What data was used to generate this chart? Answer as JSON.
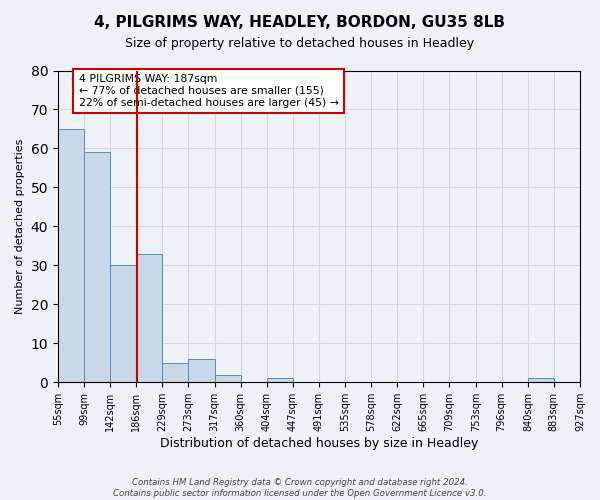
{
  "title": "4, PILGRIMS WAY, HEADLEY, BORDON, GU35 8LB",
  "subtitle": "Size of property relative to detached houses in Headley",
  "xlabel": "Distribution of detached houses by size in Headley",
  "ylabel": "Number of detached properties",
  "bar_edges": [
    55,
    99,
    142,
    186,
    229,
    273,
    317,
    360,
    404,
    447,
    491,
    535,
    578,
    622,
    665,
    709,
    753,
    796,
    840,
    883,
    927
  ],
  "bar_heights": [
    65,
    59,
    30,
    33,
    5,
    6,
    2,
    0,
    1,
    0,
    0,
    0,
    0,
    0,
    0,
    0,
    0,
    0,
    1,
    0
  ],
  "bar_color": "#c8d8e8",
  "bar_edge_color": "#5090b0",
  "property_line_x": 187,
  "property_line_color": "#cc0000",
  "annotation_text": "4 PILGRIMS WAY: 187sqm\n← 77% of detached houses are smaller (155)\n22% of semi-detached houses are larger (45) →",
  "annotation_box_color": "white",
  "annotation_box_edge_color": "#cc0000",
  "ylim": [
    0,
    80
  ],
  "yticks": [
    0,
    10,
    20,
    30,
    40,
    50,
    60,
    70,
    80
  ],
  "tick_labels": [
    "55sqm",
    "99sqm",
    "142sqm",
    "186sqm",
    "229sqm",
    "273sqm",
    "317sqm",
    "360sqm",
    "404sqm",
    "447sqm",
    "491sqm",
    "535sqm",
    "578sqm",
    "622sqm",
    "665sqm",
    "709sqm",
    "753sqm",
    "796sqm",
    "840sqm",
    "883sqm",
    "927sqm"
  ],
  "footer_text": "Contains HM Land Registry data © Crown copyright and database right 2024.\nContains public sector information licensed under the Open Government Licence v3.0.",
  "grid_color": "#d0d8e0",
  "background_color": "#eef2f6"
}
